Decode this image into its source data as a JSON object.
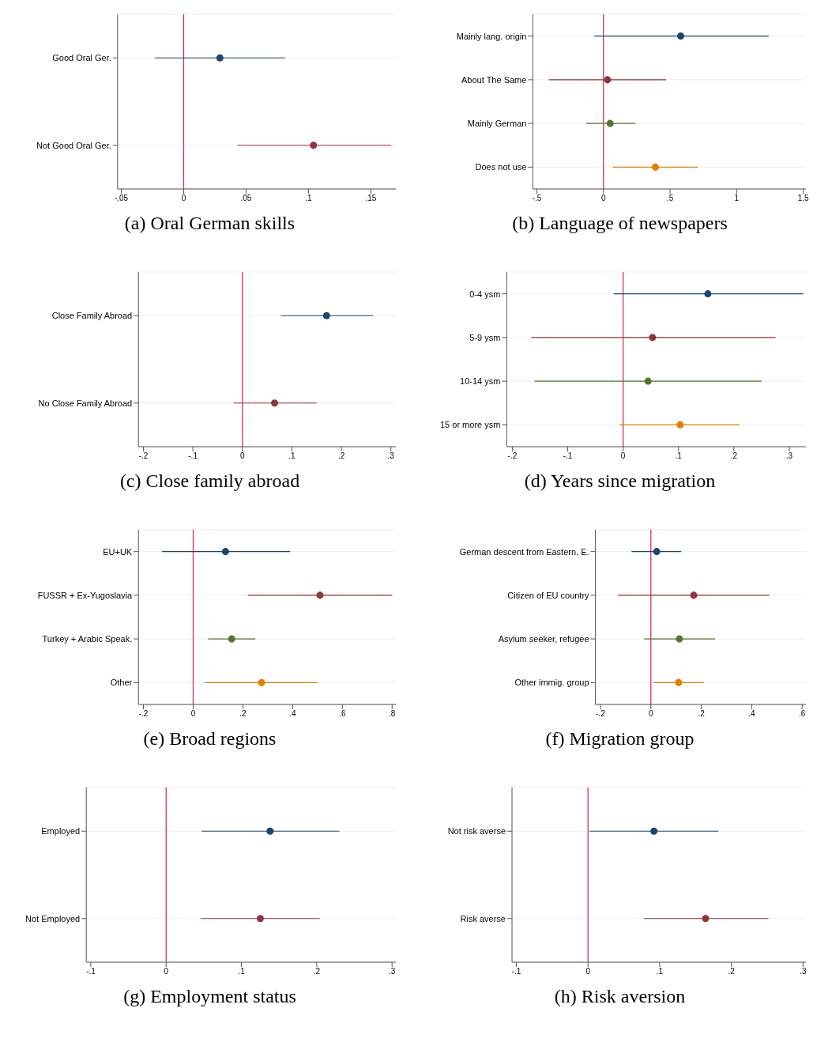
{
  "chart_data": [
    {
      "type": "scatter",
      "orientation": "horizontal",
      "title": "(a) Oral German skills",
      "categories": [
        "Good Oral Ger.",
        "Not Good Oral Ger."
      ],
      "values": [
        0.029,
        0.104
      ],
      "errors": [
        [
          -0.023,
          0.081
        ],
        [
          0.043,
          0.166
        ]
      ],
      "colors": [
        "#1a476f",
        "#90353b"
      ],
      "marker": "circle",
      "grid": "y",
      "xlim": [
        -0.053,
        0.17
      ],
      "xticks": [
        {
          "value": -0.05,
          "label": "-.05"
        },
        0,
        {
          "value": 0.05,
          "label": ".05"
        },
        {
          "value": 0.1,
          "label": ".1"
        },
        {
          "value": 0.15,
          "label": ".15"
        }
      ],
      "ref_lines": [
        {
          "axis": "x",
          "value": 0,
          "color": "#d2234f"
        }
      ]
    },
    {
      "type": "scatter",
      "orientation": "horizontal",
      "title": "(b) Language of newspapers",
      "categories": [
        "Mainly lang. origin",
        "About The Same",
        "Mainly German",
        "Does not use"
      ],
      "values": [
        0.58,
        0.03,
        0.05,
        0.39
      ],
      "errors": [
        [
          -0.07,
          1.24
        ],
        [
          -0.41,
          0.47
        ],
        [
          -0.13,
          0.24
        ],
        [
          0.07,
          0.71
        ]
      ],
      "colors": [
        "#1a476f",
        "#90353b",
        "#55752f",
        "#e37e00"
      ],
      "marker": "circle",
      "grid": "y",
      "xlim": [
        -0.53,
        1.52
      ],
      "xticks": [
        {
          "value": -0.5,
          "label": "-.5"
        },
        0,
        {
          "value": 0.5,
          "label": ".5"
        },
        1,
        1.5
      ],
      "ref_lines": [
        {
          "axis": "x",
          "value": 0,
          "color": "#d2234f"
        }
      ]
    },
    {
      "type": "scatter",
      "orientation": "horizontal",
      "title": "(c) Close family abroad",
      "categories": [
        "Close Family Abroad",
        "No Close Family Abroad"
      ],
      "values": [
        0.17,
        0.065
      ],
      "errors": [
        [
          0.078,
          0.264
        ],
        [
          -0.018,
          0.15
        ]
      ],
      "colors": [
        "#1a476f",
        "#90353b"
      ],
      "marker": "circle",
      "grid": "y",
      "xlim": [
        -0.21,
        0.31
      ],
      "xticks": [
        {
          "value": -0.2,
          "label": "-.2"
        },
        {
          "value": -0.1,
          "label": "-.1"
        },
        0,
        {
          "value": 0.1,
          "label": ".1"
        },
        {
          "value": 0.2,
          "label": ".2"
        },
        {
          "value": 0.3,
          "label": ".3"
        }
      ],
      "ref_lines": [
        {
          "axis": "x",
          "value": 0,
          "color": "#d2234f"
        }
      ]
    },
    {
      "type": "scatter",
      "orientation": "horizontal",
      "title": "(d) Years since migration",
      "categories": [
        "0-4 ysm",
        "5-9 ysm",
        "10-14 ysm",
        "15 or more ysm"
      ],
      "values": [
        0.153,
        0.053,
        0.045,
        0.103
      ],
      "errors": [
        [
          -0.017,
          0.325
        ],
        [
          -0.166,
          0.275
        ],
        [
          -0.16,
          0.25
        ],
        [
          -0.006,
          0.21
        ]
      ],
      "colors": [
        "#1a476f",
        "#90353b",
        "#55752f",
        "#e37e00"
      ],
      "marker": "circle",
      "grid": "y",
      "xlim": [
        -0.21,
        0.33
      ],
      "xticks": [
        {
          "value": -0.2,
          "label": "-.2"
        },
        {
          "value": -0.1,
          "label": "-.1"
        },
        0,
        {
          "value": 0.1,
          "label": ".1"
        },
        {
          "value": 0.2,
          "label": ".2"
        },
        {
          "value": 0.3,
          "label": ".3"
        }
      ],
      "ref_lines": [
        {
          "axis": "x",
          "value": 0,
          "color": "#d2234f"
        }
      ]
    },
    {
      "type": "scatter",
      "orientation": "horizontal",
      "title": "(e) Broad regions",
      "categories": [
        "EU+UK",
        "FUSSR + Ex-Yugoslavia",
        "Turkey + Arabic Speak.",
        "Other"
      ],
      "values": [
        0.13,
        0.51,
        0.155,
        0.275
      ],
      "errors": [
        [
          -0.125,
          0.39
        ],
        [
          0.22,
          0.8
        ],
        [
          0.06,
          0.25
        ],
        [
          0.046,
          0.5
        ]
      ],
      "colors": [
        "#1a476f",
        "#90353b",
        "#55752f",
        "#e37e00"
      ],
      "marker": "circle",
      "grid": "y",
      "xlim": [
        -0.22,
        0.815
      ],
      "xticks": [
        {
          "value": -0.2,
          "label": "-.2"
        },
        0,
        {
          "value": 0.2,
          "label": ".2"
        },
        {
          "value": 0.4,
          "label": ".4"
        },
        {
          "value": 0.6,
          "label": ".6"
        },
        {
          "value": 0.8,
          "label": ".8"
        }
      ],
      "ref_lines": [
        {
          "axis": "x",
          "value": 0,
          "color": "#d2234f"
        }
      ]
    },
    {
      "type": "scatter",
      "orientation": "horizontal",
      "title": "(f) Migration group",
      "categories": [
        "German descent from Eastern. E.",
        "Citizen of EU country",
        "Asylum seeker, refugee",
        "Other immig. group"
      ],
      "values": [
        0.023,
        0.17,
        0.113,
        0.11
      ],
      "errors": [
        [
          -0.077,
          0.12
        ],
        [
          -0.13,
          0.47
        ],
        [
          -0.027,
          0.255
        ],
        [
          0.01,
          0.21
        ]
      ],
      "colors": [
        "#1a476f",
        "#90353b",
        "#55752f",
        "#e37e00"
      ],
      "marker": "circle",
      "grid": "y",
      "xlim": [
        -0.22,
        0.615
      ],
      "xticks": [
        {
          "value": -0.2,
          "label": "-.2"
        },
        0,
        {
          "value": 0.2,
          "label": ".2"
        },
        {
          "value": 0.4,
          "label": ".4"
        },
        {
          "value": 0.6,
          "label": ".6"
        }
      ],
      "ref_lines": [
        {
          "axis": "x",
          "value": 0,
          "color": "#d2234f"
        }
      ]
    },
    {
      "type": "scatter",
      "orientation": "horizontal",
      "title": "(g) Employment status",
      "categories": [
        "Employed",
        "Not Employed"
      ],
      "values": [
        0.138,
        0.125
      ],
      "errors": [
        [
          0.047,
          0.23
        ],
        [
          0.046,
          0.204
        ]
      ],
      "colors": [
        "#1a476f",
        "#90353b"
      ],
      "marker": "circle",
      "grid": "y",
      "xlim": [
        -0.106,
        0.305
      ],
      "xticks": [
        {
          "value": -0.1,
          "label": "-.1"
        },
        0,
        {
          "value": 0.1,
          "label": ".1"
        },
        {
          "value": 0.2,
          "label": ".2"
        },
        {
          "value": 0.3,
          "label": ".3"
        }
      ],
      "ref_lines": [
        {
          "axis": "x",
          "value": 0,
          "color": "#d2234f"
        }
      ]
    },
    {
      "type": "scatter",
      "orientation": "horizontal",
      "title": "(h) Risk aversion",
      "categories": [
        "Not risk averse",
        "Risk averse"
      ],
      "values": [
        0.092,
        0.164
      ],
      "errors": [
        [
          0.002,
          0.182
        ],
        [
          0.078,
          0.252
        ]
      ],
      "colors": [
        "#1a476f",
        "#90353b"
      ],
      "marker": "circle",
      "grid": "y",
      "xlim": [
        -0.106,
        0.304
      ],
      "xticks": [
        {
          "value": -0.1,
          "label": "-.1"
        },
        0,
        {
          "value": 0.1,
          "label": ".1"
        },
        {
          "value": 0.2,
          "label": ".2"
        },
        {
          "value": 0.3,
          "label": ".3"
        }
      ],
      "ref_lines": [
        {
          "axis": "x",
          "value": 0,
          "color": "#d2234f"
        }
      ]
    }
  ]
}
